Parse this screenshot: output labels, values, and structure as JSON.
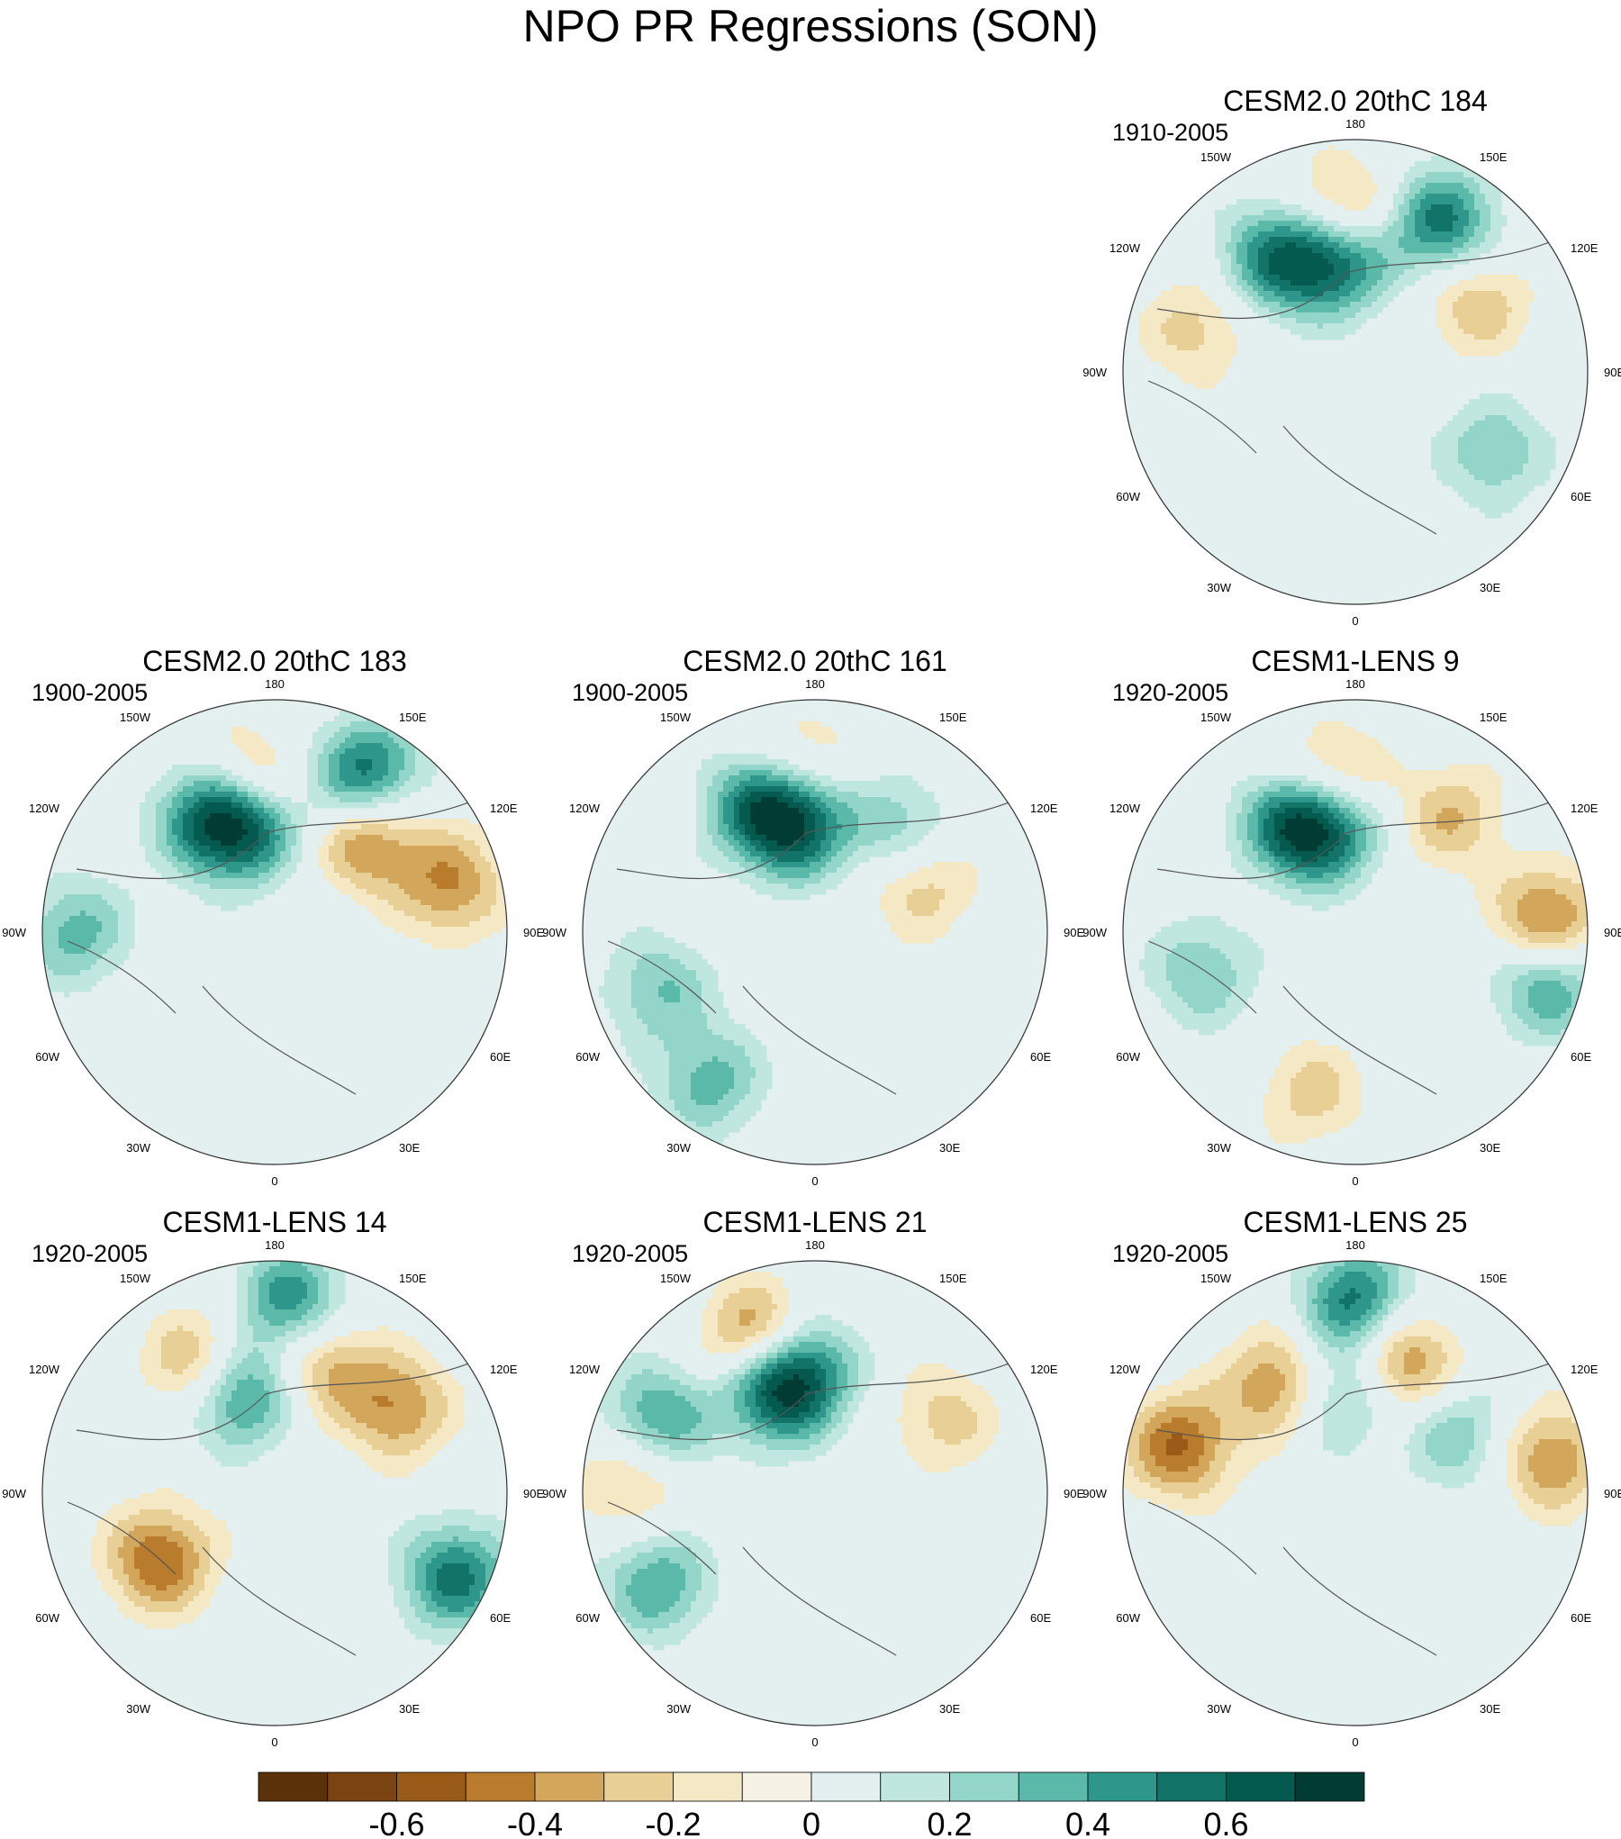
{
  "chart_data": {
    "type": "polar-stereographic-maps",
    "title": "NPO PR Regressions (SON)",
    "longitude_labels": [
      "180",
      "150E",
      "120E",
      "90E",
      "60E",
      "30E",
      "0",
      "30W",
      "60W",
      "90W",
      "120W",
      "150W"
    ],
    "panels": [
      {
        "title": "CESM2.0 20thC 184",
        "period": "1910-2005",
        "blobs": [
          {
            "lon": -175,
            "lat": 42,
            "v": -0.4
          },
          {
            "lon": 150,
            "lat": 38,
            "v": 0.55
          },
          {
            "lon": -145,
            "lat": 48,
            "v": 0.5
          },
          {
            "lon": -170,
            "lat": 56,
            "v": 0.62
          },
          {
            "lon": 120,
            "lat": 48,
            "v": -0.3
          },
          {
            "lon": -105,
            "lat": 40,
            "v": -0.25
          },
          {
            "lon": 60,
            "lat": 42,
            "v": 0.3
          }
        ]
      },
      {
        "title": "CESM2.0 20thC 183",
        "period": "1900-2005",
        "blobs": [
          {
            "lon": -170,
            "lat": 45,
            "v": -0.4
          },
          {
            "lon": 150,
            "lat": 35,
            "v": 0.6
          },
          {
            "lon": 135,
            "lat": 50,
            "v": -0.45
          },
          {
            "lon": -150,
            "lat": 50,
            "v": 0.5
          },
          {
            "lon": -165,
            "lat": 57,
            "v": 0.62
          },
          {
            "lon": 105,
            "lat": 35,
            "v": -0.4
          },
          {
            "lon": -90,
            "lat": 30,
            "v": 0.35
          }
        ]
      },
      {
        "title": "CESM2.0 20thC 161",
        "period": "1900-2005",
        "blobs": [
          {
            "lon": -175,
            "lat": 38,
            "v": -0.25
          },
          {
            "lon": -155,
            "lat": 48,
            "v": 0.45
          },
          {
            "lon": -170,
            "lat": 57,
            "v": 0.62
          },
          {
            "lon": 140,
            "lat": 50,
            "v": 0.3
          },
          {
            "lon": 115,
            "lat": 55,
            "v": -0.3
          },
          {
            "lon": -35,
            "lat": 35,
            "v": 0.35
          },
          {
            "lon": -70,
            "lat": 40,
            "v": 0.3
          }
        ]
      },
      {
        "title": "CESM1-LENS 9",
        "period": "1920-2005",
        "blobs": [
          {
            "lon": -170,
            "lat": 45,
            "v": -0.45
          },
          {
            "lon": -150,
            "lat": 52,
            "v": 0.5
          },
          {
            "lon": -165,
            "lat": 57,
            "v": 0.62
          },
          {
            "lon": 140,
            "lat": 45,
            "v": -0.3
          },
          {
            "lon": 93,
            "lat": 32,
            "v": -0.5
          },
          {
            "lon": 75,
            "lat": 30,
            "v": 0.45
          },
          {
            "lon": -75,
            "lat": 42,
            "v": 0.3
          },
          {
            "lon": -15,
            "lat": 40,
            "v": -0.25
          }
        ]
      },
      {
        "title": "CESM1-LENS 14",
        "period": "1920-2005",
        "blobs": [
          {
            "lon": 175,
            "lat": 32,
            "v": 0.5
          },
          {
            "lon": -150,
            "lat": 45,
            "v": -0.4
          },
          {
            "lon": 160,
            "lat": 48,
            "v": -0.35
          },
          {
            "lon": -160,
            "lat": 58,
            "v": 0.55
          },
          {
            "lon": 125,
            "lat": 45,
            "v": -0.4
          },
          {
            "lon": -60,
            "lat": 50,
            "v": -0.5
          },
          {
            "lon": 65,
            "lat": 30,
            "v": 0.55
          }
        ]
      },
      {
        "title": "CESM1-LENS 21",
        "period": "1920-2005",
        "blobs": [
          {
            "lon": -160,
            "lat": 40,
            "v": -0.5
          },
          {
            "lon": -175,
            "lat": 52,
            "v": 0.4
          },
          {
            "lon": -160,
            "lat": 57,
            "v": 0.62
          },
          {
            "lon": -95,
            "lat": 35,
            "v": -0.3
          },
          {
            "lon": -60,
            "lat": 35,
            "v": 0.4
          },
          {
            "lon": -115,
            "lat": 38,
            "v": 0.45
          },
          {
            "lon": 120,
            "lat": 45,
            "v": -0.25
          }
        ]
      },
      {
        "title": "CESM1-LENS 25",
        "period": "1920-2005",
        "blobs": [
          {
            "lon": 180,
            "lat": 32,
            "v": 0.55
          },
          {
            "lon": -145,
            "lat": 50,
            "v": -0.45
          },
          {
            "lon": 160,
            "lat": 48,
            "v": -0.45
          },
          {
            "lon": -170,
            "lat": 60,
            "v": 0.35
          },
          {
            "lon": -105,
            "lat": 35,
            "v": -0.5
          },
          {
            "lon": 120,
            "lat": 55,
            "v": 0.3
          },
          {
            "lon": 100,
            "lat": 30,
            "v": -0.4
          }
        ]
      }
    ],
    "colorbar": {
      "levels": [
        -0.7,
        -0.6,
        -0.5,
        -0.4,
        -0.3,
        -0.2,
        -0.1,
        0,
        0.1,
        0.2,
        0.3,
        0.4,
        0.5,
        0.6,
        0.7
      ],
      "tick_labels": [
        "-0.6",
        "-0.4",
        "-0.2",
        "0",
        "0.2",
        "0.4",
        "0.6"
      ],
      "tick_values": [
        -0.6,
        -0.4,
        -0.2,
        0,
        0.2,
        0.4,
        0.6
      ],
      "colors": [
        "#5a3108",
        "#7a4410",
        "#9a5a18",
        "#b97b2c",
        "#d2a75c",
        "#e8cf95",
        "#f5e8c4",
        "#f5f1e4",
        "#e4f0ef",
        "#bfe6df",
        "#93d5c8",
        "#5bb9a9",
        "#2e968a",
        "#127468",
        "#055a50",
        "#003c33"
      ]
    }
  }
}
